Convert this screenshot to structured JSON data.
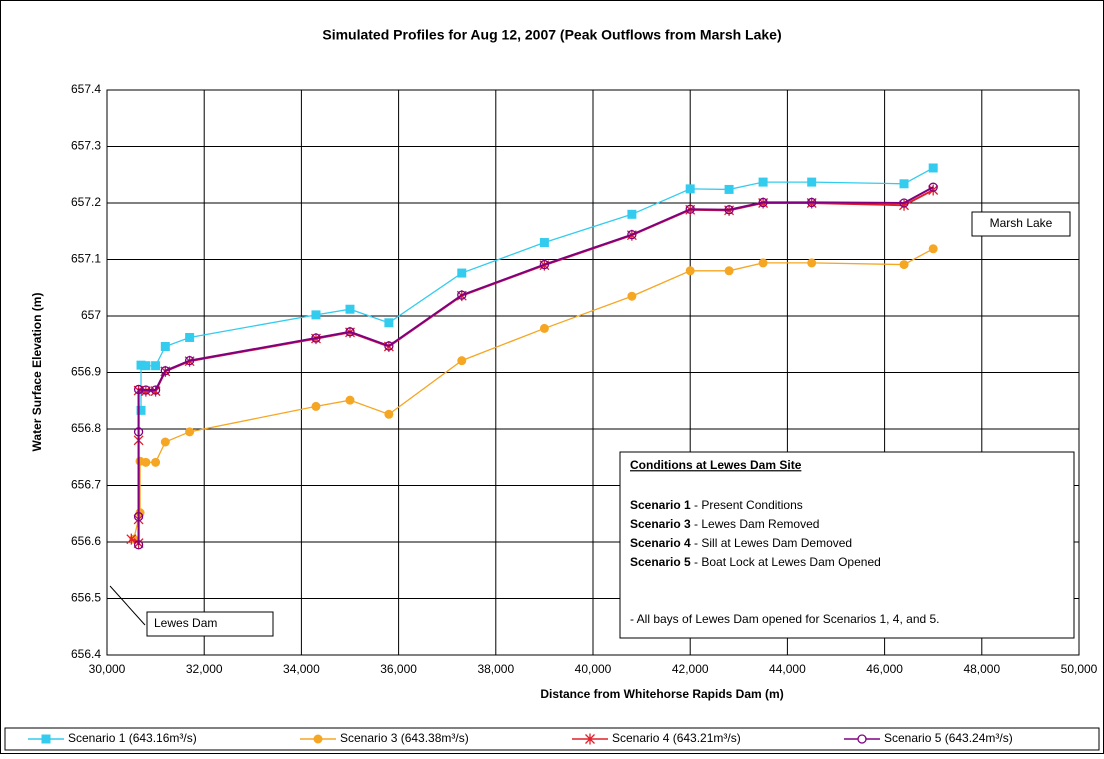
{
  "chart_data": {
    "type": "line",
    "title": "Simulated Profiles for Aug 12, 2007 (Peak Outflows from Marsh Lake)",
    "x_label": "Distance from Whitehorse Rapids Dam (m)",
    "y_label": "Water Surface Elevation (m)",
    "xlim": [
      30000,
      50000
    ],
    "xticks": [
      {
        "value": 30000,
        "label": "30,000"
      },
      {
        "value": 32000,
        "label": "32,000"
      },
      {
        "value": 34000,
        "label": "34,000"
      },
      {
        "value": 36000,
        "label": "36,000"
      },
      {
        "value": 38000,
        "label": "38,000"
      },
      {
        "value": 40000,
        "label": "40,000"
      },
      {
        "value": 42000,
        "label": "42,000"
      },
      {
        "value": 44000,
        "label": "44,000"
      },
      {
        "value": 46000,
        "label": "46,000"
      },
      {
        "value": 48000,
        "label": "48,000"
      },
      {
        "value": 50000,
        "label": "50,000"
      }
    ],
    "ylim": [
      656.4,
      657.4
    ],
    "yticks": [
      656.4,
      656.5,
      656.6,
      656.7,
      656.8,
      656.9,
      657,
      657.1,
      657.2,
      657.3,
      657.4
    ],
    "grid": true,
    "legend": "bottom",
    "series": [
      {
        "name": "Scenario 1 (643.16m³/s)",
        "color": "#33ccee",
        "marker": "square",
        "x": [
          30700,
          30700,
          30800,
          31000,
          31200,
          31700,
          34300,
          35000,
          35800,
          37300,
          39000,
          40800,
          42000,
          42800,
          43500,
          44500,
          46400,
          47000
        ],
        "values": [
          656.833,
          656.913,
          656.912,
          656.912,
          656.946,
          656.962,
          657.002,
          657.012,
          656.988,
          657.076,
          657.13,
          657.18,
          657.225,
          657.224,
          657.237,
          657.237,
          657.234,
          657.262
        ]
      },
      {
        "name": "Scenario 3 (643.38m³/s)",
        "color": "#f5a623",
        "marker": "circle",
        "x": [
          30550,
          30680,
          30680,
          30800,
          31000,
          31200,
          31700,
          34300,
          35000,
          35800,
          37300,
          39000,
          40800,
          42000,
          42800,
          43500,
          44500,
          46400,
          47000
        ],
        "values": [
          656.605,
          656.652,
          656.743,
          656.741,
          656.741,
          656.777,
          656.795,
          656.84,
          656.851,
          656.826,
          656.921,
          656.978,
          657.035,
          657.08,
          657.08,
          657.094,
          657.094,
          657.091,
          657.119
        ]
      },
      {
        "name": "Scenario 4 (643.21m³/s)",
        "color": "#e0202a",
        "marker": "star",
        "x": [
          30500,
          30650,
          30650,
          30650,
          30650,
          30800,
          31000,
          31200,
          31700,
          34300,
          35000,
          35800,
          37300,
          39000,
          40800,
          42000,
          42800,
          43500,
          44500,
          46400,
          47000
        ],
        "values": [
          656.605,
          656.598,
          656.64,
          656.78,
          656.868,
          656.867,
          656.867,
          656.902,
          656.92,
          656.96,
          656.971,
          656.946,
          657.036,
          657.09,
          657.143,
          657.188,
          657.187,
          657.2,
          657.2,
          657.196,
          657.223
        ]
      },
      {
        "name": "Scenario 5 (643.24m³/s)",
        "color": "#800080",
        "marker": "open-circle",
        "x": [
          30650,
          30650,
          30650,
          30650,
          30800,
          31000,
          31200,
          31700,
          34300,
          35000,
          35800,
          37300,
          39000,
          40800,
          42000,
          42800,
          43500,
          44500,
          46400,
          47000
        ],
        "values": [
          656.595,
          656.645,
          656.795,
          656.87,
          656.869,
          656.869,
          656.903,
          656.921,
          656.961,
          656.972,
          656.947,
          657.037,
          657.091,
          657.144,
          657.189,
          657.188,
          657.201,
          657.201,
          657.2,
          657.228
        ]
      }
    ],
    "annotations": {
      "marsh_lake": "Marsh Lake",
      "lewes_dam": "Lewes Dam",
      "conditions_title": "Conditions at Lewes Dam Site",
      "conditions": [
        {
          "bold": "Scenario 1",
          "text": " - Present Conditions"
        },
        {
          "bold": "Scenario 3",
          "text": " - Lewes Dam Removed"
        },
        {
          "bold": "Scenario 4",
          "text": " - Sill at Lewes Dam Demoved"
        },
        {
          "bold": "Scenario 5",
          "text": " - Boat Lock at Lewes Dam Opened"
        }
      ],
      "note": " - All bays of Lewes Dam opened for Scenarios 1, 4, and 5."
    }
  }
}
